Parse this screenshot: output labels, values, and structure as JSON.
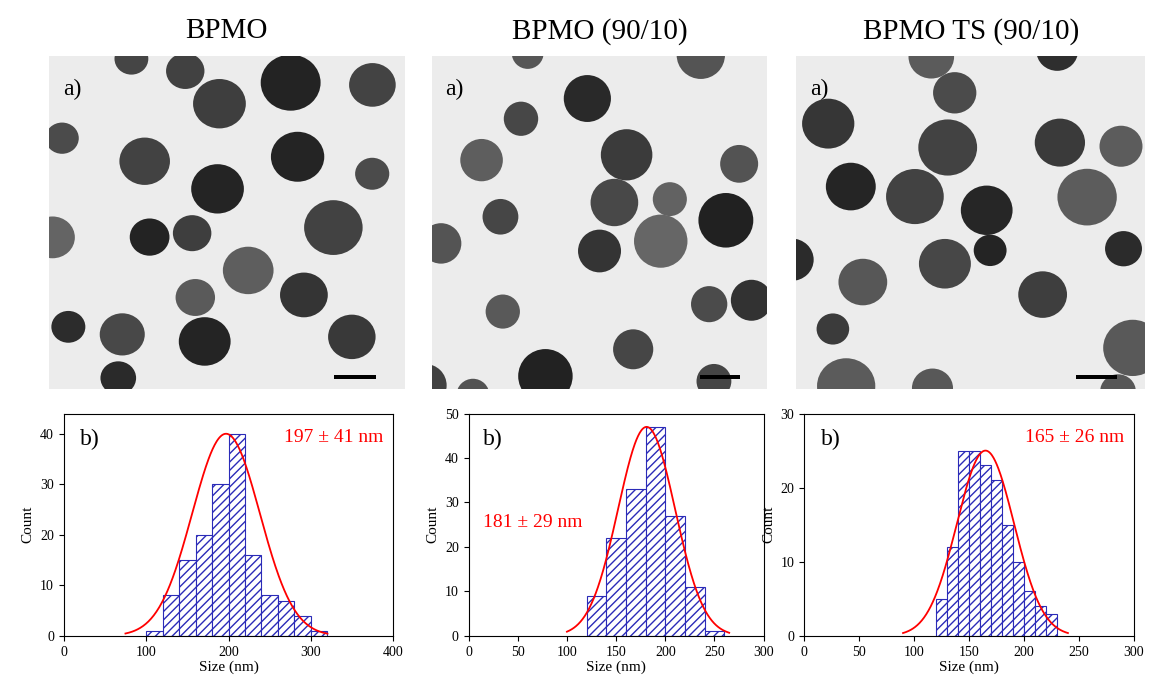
{
  "chart_data": [
    {
      "type": "histogram",
      "title": "BPMO",
      "image_label": "a)",
      "label": "b)",
      "annotation": "197 ± 41 nm",
      "x_label": "Size (nm)",
      "y_label": "Count",
      "bins": [
        100,
        120,
        140,
        160,
        180,
        200,
        220,
        240,
        260,
        280,
        300,
        320
      ],
      "counts": [
        1,
        8,
        15,
        20,
        30,
        40,
        16,
        8,
        7,
        4,
        1
      ],
      "color": "#2b2bb8",
      "fit": {
        "mean": 197,
        "sd": 41,
        "height": 40,
        "x_range": [
          75,
          320
        ],
        "color": "#ff0000"
      },
      "xlim": [
        0,
        400
      ],
      "xticks": [
        0,
        100,
        200,
        300,
        400
      ],
      "ylim": [
        0,
        44
      ],
      "yticks": [
        0,
        10,
        20,
        30,
        40
      ]
    },
    {
      "type": "histogram",
      "title": "BPMO (90/10)",
      "image_label": "a)",
      "label": "b)",
      "annotation": "181 ± 29 nm",
      "x_label": "Size (nm)",
      "y_label": "Count",
      "bins": [
        120,
        140,
        160,
        180,
        200,
        220,
        240,
        260
      ],
      "counts": [
        9,
        22,
        33,
        47,
        27,
        11,
        1
      ],
      "color": "#2b2bb8",
      "fit": {
        "mean": 181,
        "sd": 29,
        "height": 47,
        "x_range": [
          100,
          265
        ],
        "color": "#ff0000"
      },
      "xlim": [
        0,
        300
      ],
      "xticks": [
        0,
        50,
        100,
        150,
        200,
        250,
        300
      ],
      "ylim": [
        0,
        50
      ],
      "yticks": [
        0,
        10,
        20,
        30,
        40,
        50
      ]
    },
    {
      "type": "histogram",
      "title": "BPMO TS (90/10)",
      "image_label": "a)",
      "label": "b)",
      "annotation": "165 ± 26 nm",
      "x_label": "Size (nm)",
      "y_label": "Count",
      "bins": [
        120,
        130,
        140,
        150,
        160,
        170,
        180,
        190,
        200,
        210,
        220,
        230
      ],
      "counts": [
        5,
        12,
        25,
        25,
        23,
        21,
        15,
        10,
        6,
        4,
        3
      ],
      "color": "#2b2bb8",
      "fit": {
        "mean": 165,
        "sd": 26,
        "height": 25,
        "x_range": [
          90,
          240
        ],
        "color": "#ff0000"
      },
      "xlim": [
        0,
        300
      ],
      "xticks": [
        0,
        50,
        100,
        150,
        200,
        250,
        300
      ],
      "ylim": [
        0,
        30
      ],
      "yticks": [
        0,
        10,
        20,
        30
      ]
    }
  ]
}
